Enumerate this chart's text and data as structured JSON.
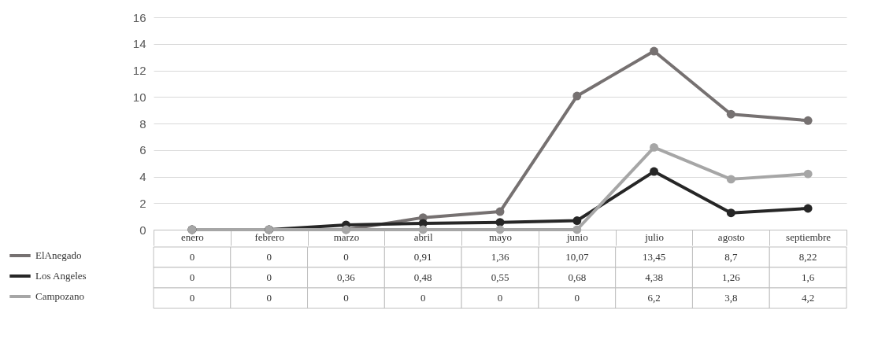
{
  "chart_data": {
    "type": "line",
    "categories": [
      "enero",
      "febrero",
      "marzo",
      "abril",
      "mayo",
      "junio",
      "julio",
      "agosto",
      "septiembre"
    ],
    "series": [
      {
        "name": "ElAnegado",
        "color": "#767171",
        "values": [
          0,
          0,
          0,
          0.91,
          1.36,
          10.07,
          13.45,
          8.7,
          8.22
        ],
        "value_labels": [
          "0",
          "0",
          "0",
          "0,91",
          "1,36",
          "10,07",
          "13,45",
          "8,7",
          "8,22"
        ]
      },
      {
        "name": "Los Angeles",
        "color": "#262626",
        "values": [
          0,
          0,
          0.36,
          0.48,
          0.55,
          0.68,
          4.38,
          1.26,
          1.6
        ],
        "value_labels": [
          "0",
          "0",
          "0,36",
          "0,48",
          "0,55",
          "0,68",
          "4,38",
          "1,26",
          "1,6"
        ]
      },
      {
        "name": "Campozano",
        "color": "#a6a6a6",
        "values": [
          0,
          0,
          0,
          0,
          0,
          0,
          6.2,
          3.8,
          4.2
        ],
        "value_labels": [
          "0",
          "0",
          "0",
          "0",
          "0",
          "0",
          "6,2",
          "3,8",
          "4,2"
        ]
      }
    ],
    "ylim": [
      0,
      16
    ],
    "yticks": [
      0,
      2,
      4,
      6,
      8,
      10,
      12,
      14,
      16
    ],
    "grid": "y",
    "legend": "bottom left",
    "marker": "circle"
  }
}
